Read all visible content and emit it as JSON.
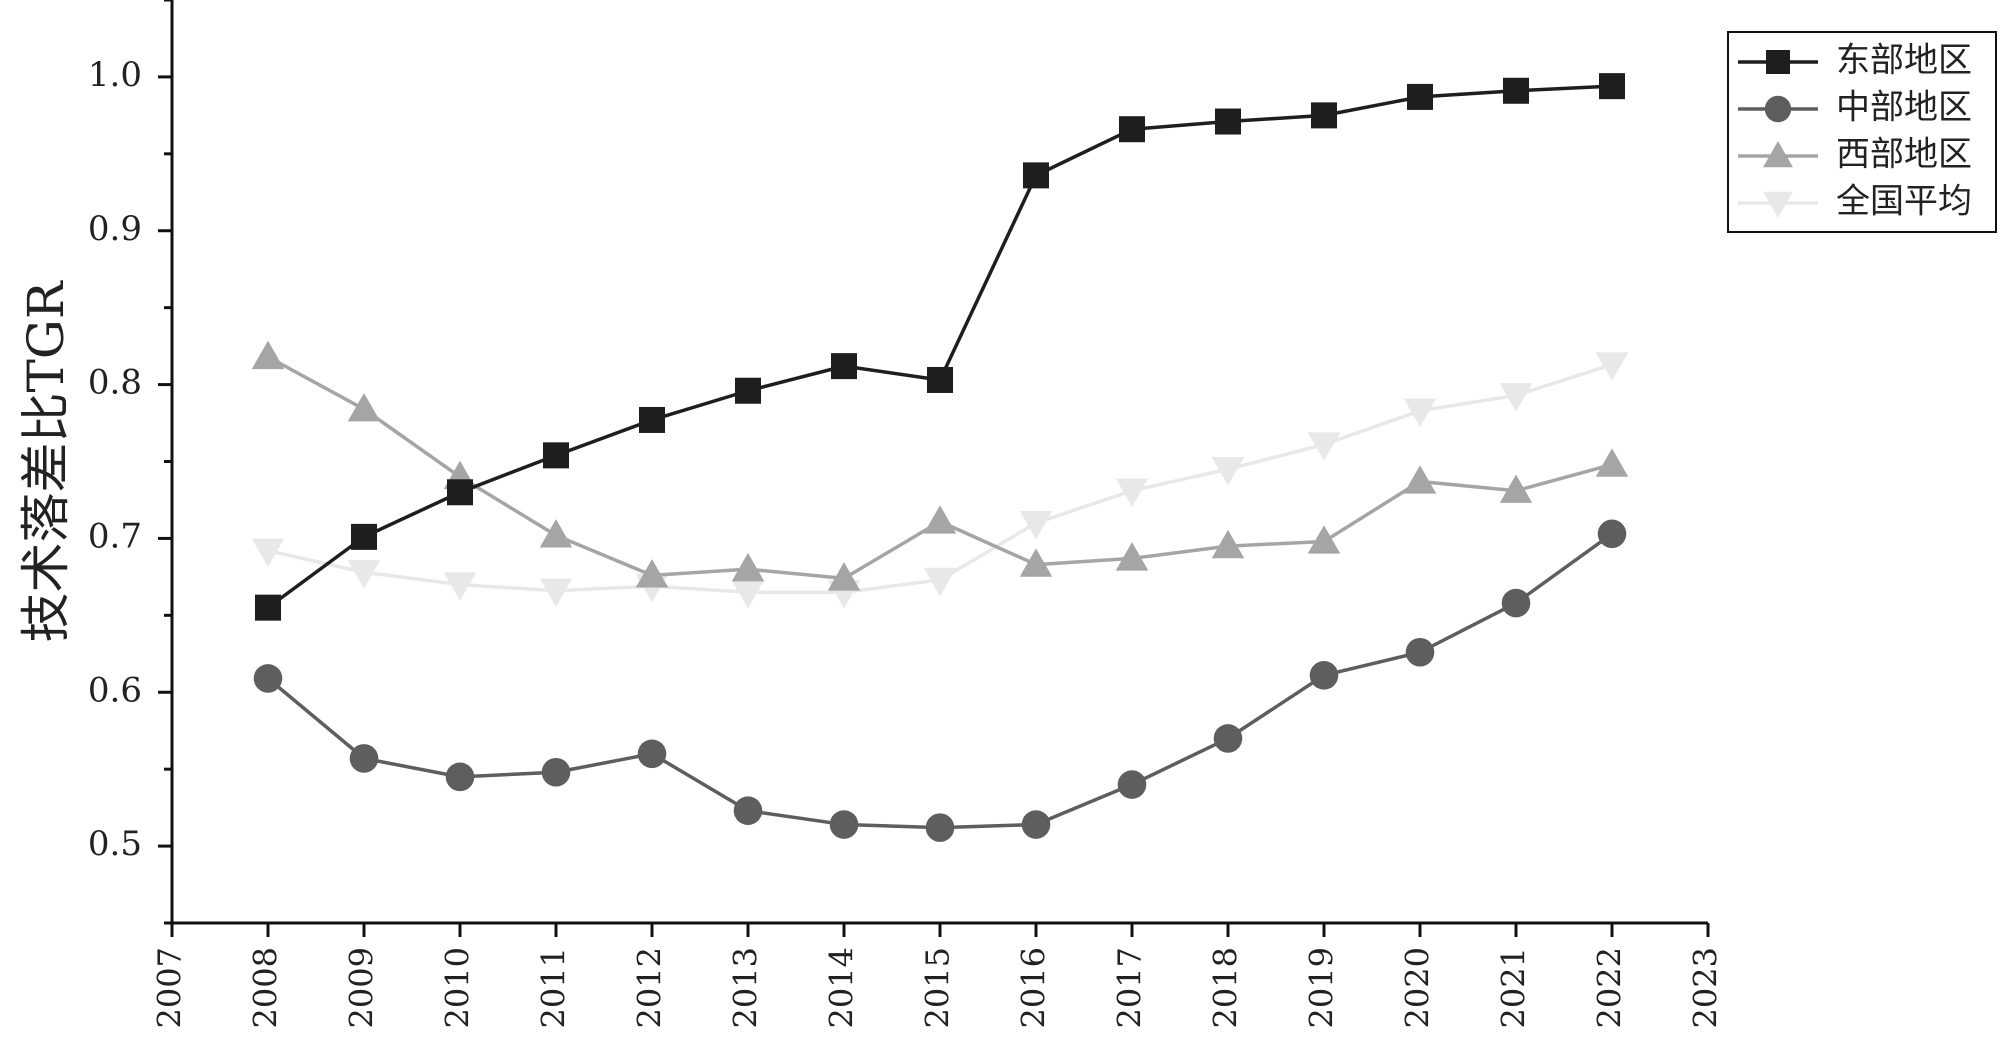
{
  "chart_data": {
    "type": "line",
    "ylabel": "技术落差比TGR",
    "xlabel": "",
    "xlim": [
      2007,
      2023
    ],
    "ylim": [
      0.45,
      1.05
    ],
    "xticks": [
      "2007",
      "2008",
      "2009",
      "2010",
      "2011",
      "2012",
      "2013",
      "2014",
      "2015",
      "2016",
      "2017",
      "2018",
      "2019",
      "2020",
      "2021",
      "2022",
      "2023"
    ],
    "yticks": [
      "0.5",
      "0.6",
      "0.7",
      "0.8",
      "0.9",
      "1.0"
    ],
    "ytick_values": [
      0.5,
      0.6,
      0.7,
      0.8,
      0.9,
      1.0
    ],
    "x": [
      2008,
      2009,
      2010,
      2011,
      2012,
      2013,
      2014,
      2015,
      2016,
      2017,
      2018,
      2019,
      2020,
      2021,
      2022
    ],
    "grid": false,
    "legend_position": "top-right",
    "series": [
      {
        "name": "东部地区",
        "color": "#1e1e1e",
        "marker": "square",
        "values": [
          0.655,
          0.701,
          0.73,
          0.754,
          0.777,
          0.796,
          0.812,
          0.803,
          0.936,
          0.966,
          0.971,
          0.975,
          0.987,
          0.991,
          0.994
        ]
      },
      {
        "name": "中部地区",
        "color": "#5e5e5e",
        "marker": "circle",
        "values": [
          0.609,
          0.557,
          0.545,
          0.548,
          0.56,
          0.523,
          0.514,
          0.512,
          0.514,
          0.54,
          0.57,
          0.611,
          0.626,
          0.658,
          0.703
        ]
      },
      {
        "name": "西部地区",
        "color": "#a5a5a5",
        "marker": "triangle-up",
        "values": [
          0.818,
          0.784,
          0.74,
          0.702,
          0.676,
          0.68,
          0.674,
          0.711,
          0.683,
          0.687,
          0.695,
          0.698,
          0.737,
          0.731,
          0.748
        ]
      },
      {
        "name": "全国平均",
        "color": "#e8e8e8",
        "marker": "triangle-down",
        "values": [
          0.692,
          0.678,
          0.67,
          0.666,
          0.669,
          0.665,
          0.665,
          0.673,
          0.71,
          0.731,
          0.745,
          0.761,
          0.783,
          0.793,
          0.813
        ]
      }
    ]
  }
}
